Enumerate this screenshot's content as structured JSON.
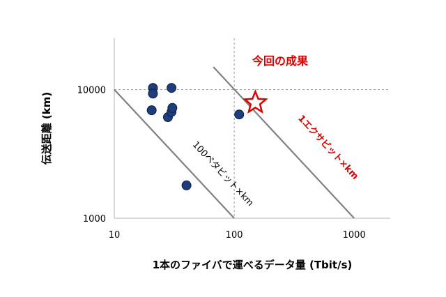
{
  "chart_data": {
    "type": "scatter",
    "xscale": "log",
    "yscale": "log",
    "xlim": [
      10,
      2000
    ],
    "ylim": [
      1000,
      25000
    ],
    "x_ticks": [
      "10",
      "100",
      "1000"
    ],
    "y_ticks": [
      "1000",
      "10000"
    ],
    "xlabel": "1本のファイバで運べるデータ量 (Tbit/s)",
    "ylabel": "伝送距離 (km)",
    "grid": "dashed lines at 10000 and 100",
    "point_color": "#1f3d7a",
    "star_color": "#e00000",
    "line_color": "#808080",
    "points": [
      {
        "x": 21,
        "y": 10300
      },
      {
        "x": 21,
        "y": 9300
      },
      {
        "x": 30,
        "y": 10300
      },
      {
        "x": 20.5,
        "y": 6900
      },
      {
        "x": 28,
        "y": 6100
      },
      {
        "x": 30,
        "y": 6700
      },
      {
        "x": 30.5,
        "y": 7200
      },
      {
        "x": 110,
        "y": 6400
      },
      {
        "x": 40,
        "y": 1800
      }
    ],
    "star": {
      "x": 150,
      "y": 7900
    },
    "lines": [
      {
        "x_start": 10,
        "y_start": 10000,
        "x_end": 100,
        "y_end": 1000
      },
      {
        "x_start": 67,
        "y_start": 15000,
        "x_end": 1000,
        "y_end": 1000
      }
    ],
    "annotations": {
      "line1": "100ペタビット×km",
      "line2": "1エクサビット×km",
      "star": "今回の成果"
    }
  }
}
